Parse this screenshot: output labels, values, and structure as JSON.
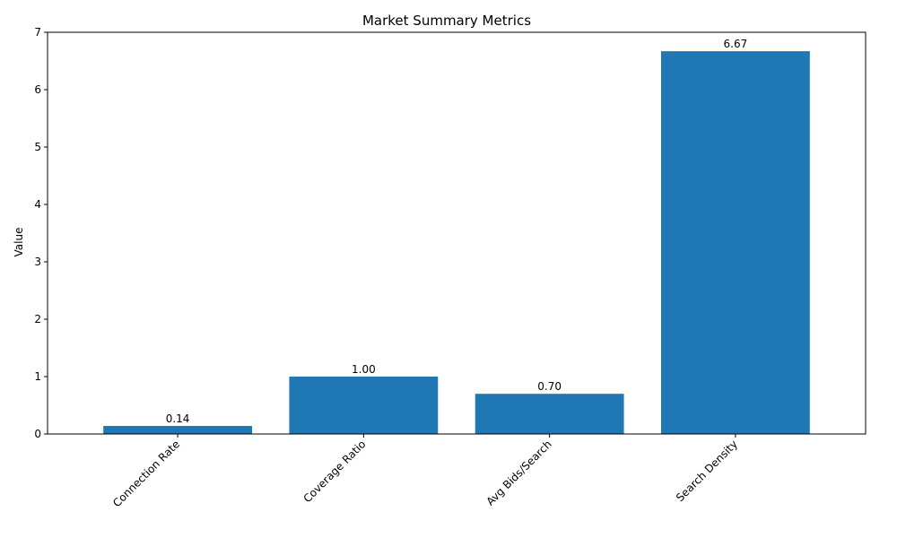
{
  "chart_data": {
    "type": "bar",
    "title": "Market Summary Metrics",
    "xlabel": "",
    "ylabel": "Value",
    "categories": [
      "Connection Rate",
      "Coverage Ratio",
      "Avg Bids/Search",
      "Search Density"
    ],
    "values": [
      0.14,
      1.0,
      0.7,
      6.67
    ],
    "value_labels": [
      "0.14",
      "1.00",
      "0.70",
      "6.67"
    ],
    "ylim": [
      0,
      7
    ],
    "yticks": [
      0,
      1,
      2,
      3,
      4,
      5,
      6,
      7
    ],
    "ytick_labels": [
      "0",
      "1",
      "2",
      "3",
      "4",
      "5",
      "6",
      "7"
    ],
    "bar_color": "#1f77b4",
    "grid": false,
    "xtick_rotation_deg": 45
  }
}
